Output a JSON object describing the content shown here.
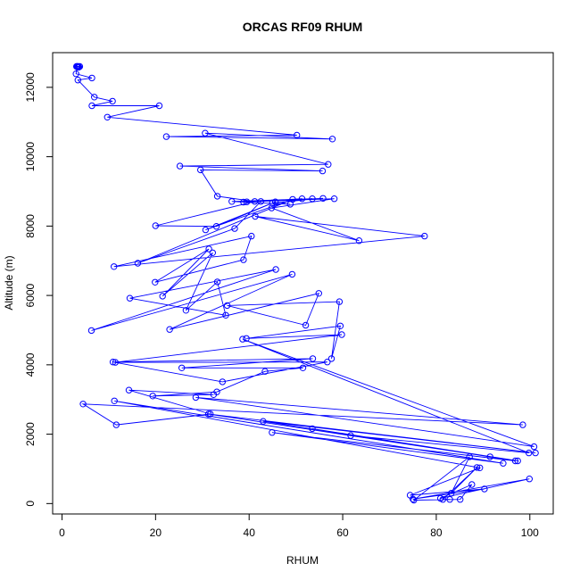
{
  "chart_data": {
    "type": "line",
    "title": "ORCAS RF09 RHUM",
    "xlabel": "RHUM",
    "ylabel": "Altitude (m)",
    "xlim": [
      -2,
      105
    ],
    "ylim": [
      -300,
      13000
    ],
    "x_ticks": [
      0,
      20,
      40,
      60,
      80,
      100
    ],
    "y_ticks": [
      0,
      2000,
      4000,
      6000,
      8000,
      10000,
      12000
    ],
    "x_tick_labels": [
      "0",
      "20",
      "40",
      "60",
      "80",
      "100"
    ],
    "y_tick_labels": [
      "0",
      "2000",
      "4000",
      "6000",
      "8000",
      "10000",
      "12000"
    ],
    "grid": false,
    "legend": "none",
    "series_color": "#0000ff",
    "series": [
      {
        "x": [
          3.1,
          3.3,
          3.5,
          3.8,
          3.4,
          3.6,
          3.2,
          3.0,
          6.4,
          3.4,
          6.9,
          10.8,
          6.4,
          20.8,
          9.7,
          50.2,
          22.3,
          57.8,
          30.6,
          56.9,
          25.2,
          55.7,
          29.6,
          33.2,
          41.2,
          20.0,
          33.0,
          45.6,
          30.7,
          49.3,
          16.2,
          36.9,
          42.5,
          51.3,
          38.8,
          53.5,
          36.3,
          48.8,
          45.0,
          55.8,
          39.5,
          58.2,
          44.8,
          63.5,
          41.3,
          77.5,
          11.1,
          40.5,
          38.8,
          19.9,
          31.4,
          21.5,
          32.2,
          26.5,
          33.2,
          35.0,
          14.5,
          45.7,
          6.3,
          49.2,
          23.0,
          54.9,
          52.1,
          35.3,
          59.3,
          57.6,
          59.5,
          39.4,
          59.8,
          11.4,
          56.7,
          34.3,
          10.9,
          53.6,
          25.6,
          51.5,
          43.4,
          33.1,
          19.4,
          32.4,
          14.3,
          31.7,
          11.6,
          4.5,
          98.5,
          28.6,
          100.9,
          38.6,
          99.8,
          61.7,
          91.5,
          31.3,
          101.2,
          43.0,
          97.4,
          53.5,
          96.9,
          44.9,
          94.3,
          11.2,
          89.3,
          74.4,
          90.3,
          75.0,
          99.9,
          80.9,
          87.6,
          85.1,
          75.2,
          87.1,
          83.2,
          88.7,
          81.4,
          82.9
        ],
        "y": [
          12600,
          12600,
          12600,
          12600,
          12580,
          12580,
          12600,
          12390,
          12270,
          12210,
          11720,
          11600,
          11470,
          11470,
          11140,
          10620,
          10580,
          10510,
          10680,
          9780,
          9730,
          9590,
          9620,
          8860,
          8710,
          8010,
          7990,
          8700,
          7890,
          8770,
          6930,
          7930,
          8710,
          8790,
          8690,
          8790,
          8710,
          8630,
          8670,
          8800,
          8700,
          8790,
          8520,
          7580,
          8280,
          7710,
          6830,
          7710,
          7030,
          6380,
          7340,
          5980,
          7230,
          5570,
          6390,
          5430,
          5920,
          6750,
          4990,
          6610,
          5020,
          6060,
          5140,
          5710,
          5820,
          4180,
          5120,
          4760,
          4870,
          4070,
          4080,
          3510,
          4080,
          4180,
          3910,
          3910,
          3810,
          3220,
          3100,
          3140,
          3270,
          2580,
          2270,
          2870,
          2270,
          3060,
          1640,
          4740,
          1460,
          1960,
          1350,
          2580,
          1460,
          2370,
          1230,
          2160,
          1230,
          2050,
          1160,
          2960,
          1030,
          240,
          420,
          130,
          710,
          150,
          550,
          120,
          100,
          1350,
          300,
          1040,
          120,
          120
        ]
      }
    ]
  }
}
